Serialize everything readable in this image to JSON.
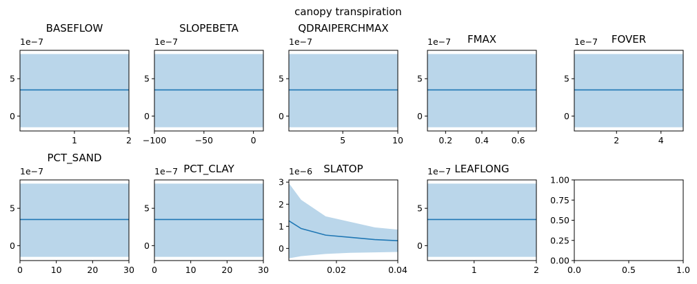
{
  "figure": {
    "suptitle": "canopy transpiration"
  },
  "colors": {
    "band": "#bad6ea",
    "line": "#1f77b4",
    "axes": "#000000",
    "background": "#ffffff"
  },
  "chart_data": [
    {
      "type": "line",
      "title": "BASEFLOW",
      "offset_text": "1e−7",
      "x": [
        0.001,
        2
      ],
      "mean": [
        3.5,
        3.5
      ],
      "lower": [
        -1.5,
        -1.5
      ],
      "upper": [
        8.3,
        8.3
      ],
      "xlim": [
        0.001,
        2
      ],
      "ylim": [
        -2.0,
        8.8
      ],
      "xticks": [
        1,
        2
      ],
      "xtick_labels": [
        "1",
        "2"
      ],
      "yticks": [
        0,
        5
      ],
      "ytick_labels": [
        "0",
        "5"
      ]
    },
    {
      "type": "line",
      "title": "SLOPEBETA",
      "offset_text": "1e−7",
      "x": [
        -100,
        10
      ],
      "mean": [
        3.5,
        3.5
      ],
      "lower": [
        -1.5,
        -1.5
      ],
      "upper": [
        8.3,
        8.3
      ],
      "xlim": [
        -100,
        10
      ],
      "ylim": [
        -2.0,
        8.8
      ],
      "xticks": [
        -100,
        -50,
        0
      ],
      "xtick_labels": [
        "−100",
        "−50",
        "0"
      ],
      "yticks": [
        0,
        5
      ],
      "ytick_labels": [
        "0",
        "5"
      ]
    },
    {
      "type": "line",
      "title": "QDRAIPERCHMAX",
      "offset_text": "1e−7",
      "x": [
        0.1,
        10
      ],
      "mean": [
        3.5,
        3.5
      ],
      "lower": [
        -1.5,
        -1.5
      ],
      "upper": [
        8.3,
        8.3
      ],
      "xlim": [
        0.1,
        10
      ],
      "ylim": [
        -2.0,
        8.8
      ],
      "xticks": [
        5,
        10
      ],
      "xtick_labels": [
        "5",
        "10"
      ],
      "yticks": [
        0,
        5
      ],
      "ytick_labels": [
        "0",
        "5"
      ]
    },
    {
      "type": "line",
      "title": "FMAX",
      "offset_text": "1e−7",
      "x": [
        0.1,
        0.7
      ],
      "mean": [
        3.5,
        3.5
      ],
      "lower": [
        -1.5,
        -1.5
      ],
      "upper": [
        8.3,
        8.3
      ],
      "xlim": [
        0.1,
        0.7
      ],
      "ylim": [
        -2.0,
        8.8
      ],
      "xticks": [
        0.2,
        0.4,
        0.6
      ],
      "xtick_labels": [
        "0.2",
        "0.4",
        "0.6"
      ],
      "yticks": [
        0,
        5
      ],
      "ytick_labels": [
        "0",
        "5"
      ]
    },
    {
      "type": "line",
      "title": "FOVER",
      "offset_text": "1e−7",
      "x": [
        0.1,
        5
      ],
      "mean": [
        3.5,
        3.5
      ],
      "lower": [
        -1.5,
        -1.5
      ],
      "upper": [
        8.3,
        8.3
      ],
      "xlim": [
        0.1,
        5
      ],
      "ylim": [
        -2.0,
        8.8
      ],
      "xticks": [
        2,
        4
      ],
      "xtick_labels": [
        "2",
        "4"
      ],
      "yticks": [
        0,
        5
      ],
      "ytick_labels": [
        "0",
        "5"
      ]
    },
    {
      "type": "line",
      "title": "PCT_SAND",
      "offset_text": "1e−7",
      "x": [
        0,
        30
      ],
      "mean": [
        3.5,
        3.5
      ],
      "lower": [
        -1.5,
        -1.5
      ],
      "upper": [
        8.3,
        8.3
      ],
      "xlim": [
        0,
        30
      ],
      "ylim": [
        -2.0,
        8.8
      ],
      "xticks": [
        0,
        10,
        20,
        30
      ],
      "xtick_labels": [
        "0",
        "10",
        "20",
        "30"
      ],
      "yticks": [
        0,
        5
      ],
      "ytick_labels": [
        "0",
        "5"
      ]
    },
    {
      "type": "line",
      "title": "PCT_CLAY",
      "offset_text": "1e−7",
      "x": [
        0,
        30
      ],
      "mean": [
        3.5,
        3.5
      ],
      "lower": [
        -1.5,
        -1.5
      ],
      "upper": [
        8.3,
        8.3
      ],
      "xlim": [
        0,
        30
      ],
      "ylim": [
        -2.0,
        8.8
      ],
      "xticks": [
        0,
        10,
        20,
        30
      ],
      "xtick_labels": [
        "0",
        "10",
        "20",
        "30"
      ],
      "yticks": [
        0,
        5
      ],
      "ytick_labels": [
        "0",
        "5"
      ]
    },
    {
      "type": "line",
      "title": "SLATOP",
      "offset_text": "1e−6",
      "x": [
        0.0045,
        0.0085,
        0.0165,
        0.0245,
        0.0325,
        0.04
      ],
      "mean": [
        1.25,
        0.9,
        0.6,
        0.5,
        0.4,
        0.35
      ],
      "lower": [
        -0.45,
        -0.35,
        -0.25,
        -0.2,
        -0.18,
        -0.16
      ],
      "upper": [
        2.95,
        2.2,
        1.45,
        1.2,
        0.95,
        0.85
      ],
      "xlim": [
        0.0045,
        0.04
      ],
      "ylim": [
        -0.55,
        3.1
      ],
      "xticks": [
        0.02,
        0.04
      ],
      "xtick_labels": [
        "0.02",
        "0.04"
      ],
      "yticks": [
        0,
        1,
        2,
        3
      ],
      "ytick_labels": [
        "0",
        "1",
        "2",
        "3"
      ]
    },
    {
      "type": "line",
      "title": "LEAFLONG",
      "offset_text": "1e−7",
      "x": [
        0.25,
        2
      ],
      "mean": [
        3.5,
        3.5
      ],
      "lower": [
        -1.5,
        -1.5
      ],
      "upper": [
        8.3,
        8.3
      ],
      "xlim": [
        0.25,
        2
      ],
      "ylim": [
        -2.0,
        8.8
      ],
      "xticks": [
        1,
        2
      ],
      "xtick_labels": [
        "1",
        "2"
      ],
      "yticks": [
        0,
        5
      ],
      "ytick_labels": [
        "0",
        "5"
      ]
    },
    {
      "type": "line",
      "title": "",
      "offset_text": "",
      "x": [],
      "mean": [],
      "lower": [],
      "upper": [],
      "xlim": [
        0,
        1
      ],
      "ylim": [
        0,
        1
      ],
      "xticks": [
        0,
        0.5,
        1
      ],
      "xtick_labels": [
        "0.0",
        "0.5",
        "1.0"
      ],
      "yticks": [
        0,
        0.25,
        0.5,
        0.75,
        1
      ],
      "ytick_labels": [
        "0.00",
        "0.25",
        "0.50",
        "0.75",
        "1.00"
      ]
    }
  ]
}
